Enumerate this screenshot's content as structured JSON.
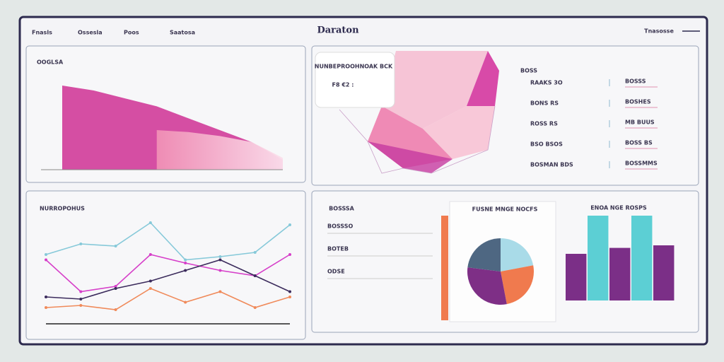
{
  "header": {
    "title": "Daraton",
    "nav": [
      "Fnasls",
      "Ossesla",
      "Poos",
      "Saatosa"
    ],
    "action": "Tnasosse"
  },
  "network_panel": {
    "popup_title": "NUNBEPROOHNOAK BCK",
    "popup_value": "F8 €2 :",
    "list_title": "BOSS",
    "left_items": [
      "RAAKS 3O",
      "BONS RS",
      "ROSS RS",
      "BSO BSOS",
      "BOSMAN BDS"
    ],
    "right_items": [
      "BOSSS",
      "BOSHES",
      "MB BUUS",
      "BOSS BS",
      "BOSSMMS"
    ]
  },
  "summary_panel": {
    "title": "BOSSSA",
    "items": [
      "BOSSSO",
      "BOTEB",
      "ODSE"
    ]
  },
  "chart_data": [
    {
      "type": "area",
      "title": "OOGLSA",
      "ylim": [
        0,
        100
      ],
      "series": [
        {
          "color": "#d3449e",
          "values": [
            85,
            80,
            72,
            64,
            52,
            40,
            28,
            10
          ]
        },
        {
          "color": "#f3a3c4",
          "values": [
            null,
            null,
            null,
            40,
            38,
            34,
            28,
            12
          ]
        }
      ]
    },
    {
      "type": "line",
      "title": "NURROPOHUS",
      "ylim": [
        0,
        100
      ],
      "series": [
        {
          "color": "#86c9d9",
          "values": [
            60,
            70,
            68,
            90,
            55,
            58,
            62,
            88
          ]
        },
        {
          "color": "#d63fc9",
          "values": [
            55,
            25,
            30,
            60,
            52,
            45,
            40,
            60
          ]
        },
        {
          "color": "#3b2b5c",
          "values": [
            20,
            18,
            28,
            35,
            45,
            55,
            40,
            25
          ]
        },
        {
          "color": "#f08a5a",
          "values": [
            10,
            12,
            8,
            28,
            15,
            25,
            10,
            20
          ]
        }
      ]
    },
    {
      "type": "pie",
      "title": "FUSNE MNGE NOCFS",
      "values": [
        22,
        25,
        30,
        23
      ],
      "colors": [
        "#a9dbe8",
        "#f07a4e",
        "#7e2f86",
        "#4e6782"
      ]
    },
    {
      "type": "bar",
      "title": "ENOA NGE ROSPS",
      "ylim": [
        0,
        100
      ],
      "values": [
        55,
        100,
        62,
        100,
        65
      ],
      "colors": [
        "#7b2f87",
        "#5ccfd4",
        "#7b2f87",
        "#5ccfd4",
        "#7b2f87"
      ]
    }
  ]
}
